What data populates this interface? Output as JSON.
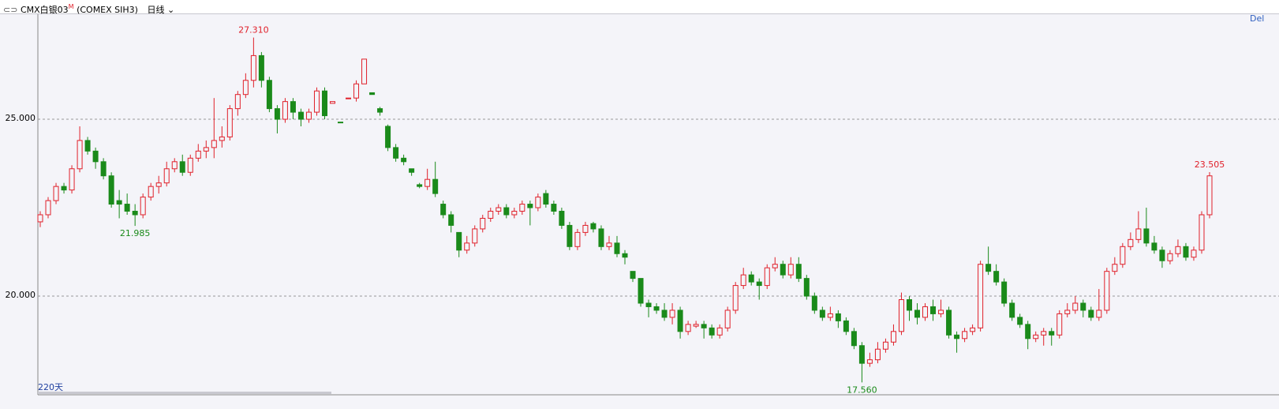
{
  "header": {
    "symbol": "CMX白银03",
    "badge": "M",
    "exchange": "(COMEX SIH3)",
    "period": "日线",
    "corner": "Del",
    "days": "220天"
  },
  "chart_data": {
    "type": "candlestick",
    "up_color": "#e0202a",
    "down_color": "#1a8a1a",
    "ylim": [
      17.21,
      27.97
    ],
    "yticks": [
      {
        "value": 25,
        "label": "25.000"
      },
      {
        "value": 20,
        "label": "20.000"
      }
    ],
    "grid": true,
    "annotations": [
      {
        "value": 27.31,
        "label": "27.310",
        "color": "#e0202a"
      },
      {
        "value": 21.985,
        "label": "21.985",
        "color": "#1a8a1a"
      },
      {
        "value": 17.56,
        "label": "17.560",
        "color": "#1a8a1a"
      },
      {
        "value": 23.505,
        "label": "23.505",
        "color": "#e0202a"
      }
    ],
    "candles": [
      [
        22.1,
        22.4,
        21.95,
        22.3
      ],
      [
        22.3,
        22.8,
        22.2,
        22.7
      ],
      [
        22.7,
        23.2,
        22.6,
        23.1
      ],
      [
        23.1,
        23.2,
        22.9,
        23.0
      ],
      [
        23.0,
        23.7,
        22.9,
        23.6
      ],
      [
        23.6,
        24.8,
        23.5,
        24.4
      ],
      [
        24.4,
        24.5,
        24.0,
        24.1
      ],
      [
        24.1,
        24.2,
        23.6,
        23.8
      ],
      [
        23.8,
        23.9,
        23.3,
        23.4
      ],
      [
        23.4,
        23.5,
        22.5,
        22.6
      ],
      [
        22.7,
        23.0,
        22.2,
        22.6
      ],
      [
        22.6,
        22.9,
        22.3,
        22.4
      ],
      [
        22.4,
        22.6,
        21.985,
        22.3
      ],
      [
        22.3,
        22.9,
        22.2,
        22.8
      ],
      [
        22.8,
        23.2,
        22.7,
        23.1
      ],
      [
        23.1,
        23.4,
        22.9,
        23.2
      ],
      [
        23.2,
        23.8,
        23.1,
        23.6
      ],
      [
        23.6,
        23.9,
        23.5,
        23.8
      ],
      [
        23.8,
        24.0,
        23.4,
        23.5
      ],
      [
        23.5,
        24.0,
        23.4,
        23.9
      ],
      [
        23.9,
        24.3,
        23.8,
        24.1
      ],
      [
        24.1,
        24.4,
        23.9,
        24.2
      ],
      [
        24.2,
        25.6,
        23.9,
        24.4
      ],
      [
        24.4,
        24.8,
        24.2,
        24.5
      ],
      [
        24.5,
        25.4,
        24.4,
        25.3
      ],
      [
        25.3,
        25.8,
        25.1,
        25.7
      ],
      [
        25.7,
        26.3,
        25.6,
        26.1
      ],
      [
        26.1,
        27.31,
        25.9,
        26.8
      ],
      [
        26.8,
        26.9,
        25.9,
        26.1
      ],
      [
        26.1,
        26.2,
        25.2,
        25.3
      ],
      [
        25.3,
        25.4,
        24.6,
        25.0
      ],
      [
        25.0,
        25.6,
        24.9,
        25.5
      ],
      [
        25.5,
        25.6,
        25.0,
        25.2
      ],
      [
        25.2,
        25.3,
        24.8,
        25.0
      ],
      [
        25.0,
        25.3,
        24.9,
        25.2
      ],
      [
        25.2,
        25.9,
        25.1,
        25.8
      ],
      [
        25.8,
        25.9,
        25.0,
        25.1
      ],
      [
        25.45,
        25.5,
        25.45,
        25.5
      ],
      [
        24.92,
        24.92,
        24.9,
        24.9
      ],
      [
        25.58,
        25.6,
        25.58,
        25.6
      ],
      [
        25.6,
        26.1,
        25.5,
        26.0
      ],
      [
        26.0,
        26.7,
        26.0,
        26.7
      ],
      [
        25.75,
        25.75,
        25.7,
        25.7
      ],
      [
        25.3,
        25.35,
        25.1,
        25.2
      ],
      [
        24.8,
        24.85,
        24.1,
        24.2
      ],
      [
        24.2,
        24.3,
        23.8,
        23.9
      ],
      [
        23.9,
        24.0,
        23.7,
        23.8
      ],
      [
        23.6,
        23.6,
        23.4,
        23.5
      ],
      [
        23.15,
        23.2,
        23.05,
        23.1
      ],
      [
        23.1,
        23.6,
        23.0,
        23.3
      ],
      [
        23.3,
        23.8,
        22.8,
        22.9
      ],
      [
        22.6,
        22.7,
        22.2,
        22.3
      ],
      [
        22.3,
        22.4,
        21.8,
        22.0
      ],
      [
        21.8,
        21.8,
        21.1,
        21.3
      ],
      [
        21.3,
        21.7,
        21.2,
        21.5
      ],
      [
        21.5,
        22.0,
        21.4,
        21.9
      ],
      [
        21.9,
        22.3,
        21.8,
        22.2
      ],
      [
        22.2,
        22.5,
        22.1,
        22.4
      ],
      [
        22.4,
        22.6,
        22.3,
        22.5
      ],
      [
        22.5,
        22.6,
        22.2,
        22.3
      ],
      [
        22.3,
        22.5,
        22.2,
        22.4
      ],
      [
        22.4,
        22.7,
        22.3,
        22.6
      ],
      [
        22.6,
        22.7,
        22.0,
        22.5
      ],
      [
        22.5,
        22.9,
        22.4,
        22.8
      ],
      [
        22.9,
        23.0,
        22.5,
        22.6
      ],
      [
        22.6,
        22.7,
        22.3,
        22.4
      ],
      [
        22.4,
        22.5,
        21.9,
        22.0
      ],
      [
        22.0,
        22.1,
        21.3,
        21.4
      ],
      [
        21.4,
        21.9,
        21.3,
        21.8
      ],
      [
        21.8,
        22.1,
        21.7,
        22.0
      ],
      [
        22.05,
        22.1,
        21.8,
        21.9
      ],
      [
        21.9,
        22.0,
        21.3,
        21.4
      ],
      [
        21.4,
        21.7,
        21.3,
        21.5
      ],
      [
        21.5,
        21.7,
        21.1,
        21.2
      ],
      [
        21.2,
        21.3,
        20.9,
        21.1
      ],
      [
        20.7,
        20.7,
        20.4,
        20.5
      ],
      [
        20.5,
        20.5,
        19.7,
        19.8
      ],
      [
        19.8,
        19.9,
        19.4,
        19.7
      ],
      [
        19.7,
        19.8,
        19.5,
        19.6
      ],
      [
        19.6,
        19.8,
        19.3,
        19.4
      ],
      [
        19.4,
        19.8,
        19.2,
        19.6
      ],
      [
        19.6,
        19.7,
        18.8,
        19.0
      ],
      [
        19.0,
        19.3,
        18.9,
        19.2
      ],
      [
        19.15,
        19.3,
        19.1,
        19.2
      ],
      [
        19.2,
        19.3,
        18.8,
        19.1
      ],
      [
        19.1,
        19.2,
        18.8,
        18.9
      ],
      [
        18.9,
        19.2,
        18.8,
        19.1
      ],
      [
        19.1,
        19.7,
        19.0,
        19.6
      ],
      [
        19.6,
        20.4,
        19.5,
        20.3
      ],
      [
        20.3,
        20.8,
        20.2,
        20.6
      ],
      [
        20.6,
        20.7,
        20.3,
        20.4
      ],
      [
        20.4,
        20.5,
        19.9,
        20.3
      ],
      [
        20.3,
        20.9,
        20.2,
        20.8
      ],
      [
        20.8,
        21.1,
        20.7,
        20.9
      ],
      [
        20.9,
        21.0,
        20.5,
        20.6
      ],
      [
        20.6,
        21.1,
        20.5,
        20.9
      ],
      [
        20.9,
        21.1,
        20.4,
        20.5
      ],
      [
        20.5,
        20.6,
        19.9,
        20.0
      ],
      [
        20.0,
        20.1,
        19.5,
        19.6
      ],
      [
        19.6,
        19.7,
        19.3,
        19.4
      ],
      [
        19.4,
        19.7,
        19.3,
        19.5
      ],
      [
        19.5,
        19.6,
        19.1,
        19.3
      ],
      [
        19.3,
        19.4,
        18.9,
        19.0
      ],
      [
        19.0,
        19.1,
        18.5,
        18.6
      ],
      [
        18.6,
        18.7,
        17.56,
        18.1
      ],
      [
        18.1,
        18.4,
        18.0,
        18.2
      ],
      [
        18.2,
        18.7,
        18.1,
        18.5
      ],
      [
        18.5,
        18.8,
        18.4,
        18.7
      ],
      [
        18.7,
        19.2,
        18.6,
        19.0
      ],
      [
        19.0,
        20.1,
        18.9,
        19.9
      ],
      [
        19.9,
        20.0,
        19.3,
        19.6
      ],
      [
        19.6,
        19.8,
        19.2,
        19.4
      ],
      [
        19.4,
        19.8,
        19.3,
        19.7
      ],
      [
        19.7,
        19.9,
        19.3,
        19.5
      ],
      [
        19.5,
        19.9,
        19.4,
        19.6
      ],
      [
        19.6,
        19.7,
        18.8,
        18.9
      ],
      [
        18.9,
        19.0,
        18.4,
        18.8
      ],
      [
        18.8,
        19.1,
        18.7,
        19.0
      ],
      [
        19.0,
        19.2,
        18.9,
        19.1
      ],
      [
        19.1,
        21.0,
        19.0,
        20.9
      ],
      [
        20.9,
        21.4,
        20.6,
        20.7
      ],
      [
        20.7,
        20.9,
        20.3,
        20.4
      ],
      [
        20.4,
        20.5,
        19.7,
        19.8
      ],
      [
        19.8,
        19.9,
        19.3,
        19.4
      ],
      [
        19.4,
        19.5,
        19.1,
        19.2
      ],
      [
        19.2,
        19.3,
        18.5,
        18.8
      ],
      [
        18.8,
        19.0,
        18.7,
        18.9
      ],
      [
        18.9,
        19.1,
        18.6,
        19.0
      ],
      [
        19.0,
        19.1,
        18.6,
        18.9
      ],
      [
        18.9,
        19.6,
        18.8,
        19.5
      ],
      [
        19.5,
        19.8,
        19.4,
        19.6
      ],
      [
        19.6,
        20.0,
        19.5,
        19.8
      ],
      [
        19.8,
        19.9,
        19.4,
        19.6
      ],
      [
        19.6,
        19.7,
        19.3,
        19.4
      ],
      [
        19.4,
        20.2,
        19.3,
        19.6
      ],
      [
        19.6,
        20.8,
        19.5,
        20.7
      ],
      [
        20.7,
        21.1,
        20.6,
        20.9
      ],
      [
        20.9,
        21.5,
        20.8,
        21.4
      ],
      [
        21.4,
        21.8,
        21.3,
        21.6
      ],
      [
        21.6,
        22.4,
        21.5,
        21.9
      ],
      [
        21.9,
        22.5,
        21.4,
        21.5
      ],
      [
        21.5,
        21.7,
        21.2,
        21.3
      ],
      [
        21.3,
        21.4,
        20.8,
        21.0
      ],
      [
        21.0,
        21.3,
        20.9,
        21.2
      ],
      [
        21.2,
        21.6,
        21.1,
        21.4
      ],
      [
        21.4,
        21.5,
        21.0,
        21.1
      ],
      [
        21.1,
        21.4,
        21.0,
        21.3
      ],
      [
        21.3,
        22.4,
        21.2,
        22.3
      ],
      [
        22.3,
        23.505,
        22.2,
        23.4
      ]
    ]
  }
}
